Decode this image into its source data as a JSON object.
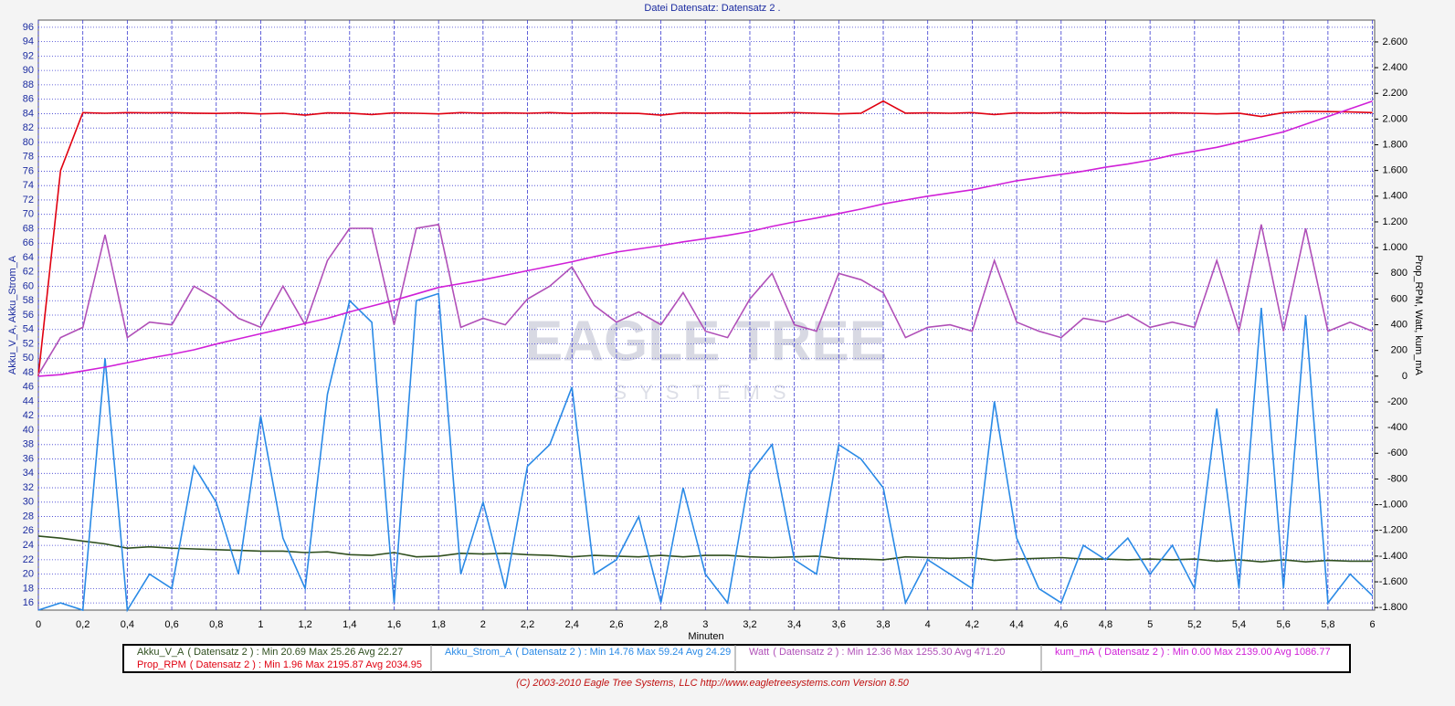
{
  "header": {
    "title": "Datei   Datensatz: Datensatz 2 ."
  },
  "footer": "(C) 2003-2010 Eagle Tree Systems, LLC      http://www.eagletreesystems.com      Version 8.50",
  "watermark": [
    "EAGLE TREE",
    "SYSTEMS"
  ],
  "chart_data": {
    "type": "line",
    "x_label": "Minuten",
    "y_label": "Akku_V_A, Akku_Strom_A",
    "y2_label": "Prop_RPM, Watt, kum_mA",
    "xlim": [
      0,
      6.01
    ],
    "ylim": [
      15,
      97
    ],
    "y2lim": [
      -1820,
      2770
    ],
    "grid": true,
    "xticks": [
      0,
      {
        "value": 0.2,
        "label": "0,2"
      },
      {
        "value": 0.4,
        "label": "0,4"
      },
      {
        "value": 0.6,
        "label": "0,6"
      },
      {
        "value": 0.8,
        "label": "0,8"
      },
      1,
      {
        "value": 1.2,
        "label": "1,2"
      },
      {
        "value": 1.4,
        "label": "1,4"
      },
      {
        "value": 1.6,
        "label": "1,6"
      },
      {
        "value": 1.8,
        "label": "1,8"
      },
      2,
      {
        "value": 2.2,
        "label": "2,2"
      },
      {
        "value": 2.4,
        "label": "2,4"
      },
      {
        "value": 2.6,
        "label": "2,6"
      },
      {
        "value": 2.8,
        "label": "2,8"
      },
      3,
      {
        "value": 3.2,
        "label": "3,2"
      },
      {
        "value": 3.4,
        "label": "3,4"
      },
      {
        "value": 3.6,
        "label": "3,6"
      },
      {
        "value": 3.8,
        "label": "3,8"
      },
      4,
      {
        "value": 4.2,
        "label": "4,2"
      },
      {
        "value": 4.4,
        "label": "4,4"
      },
      {
        "value": 4.6,
        "label": "4,6"
      },
      {
        "value": 4.8,
        "label": "4,8"
      },
      5,
      {
        "value": 5.2,
        "label": "5,2"
      },
      {
        "value": 5.4,
        "label": "5,4"
      },
      {
        "value": 5.6,
        "label": "5,6"
      },
      {
        "value": 5.8,
        "label": "5,8"
      },
      6
    ],
    "yticks": [
      16,
      18,
      20,
      22,
      24,
      26,
      28,
      30,
      32,
      34,
      36,
      38,
      40,
      42,
      44,
      46,
      48,
      50,
      52,
      54,
      56,
      58,
      60,
      62,
      64,
      66,
      68,
      70,
      72,
      74,
      76,
      78,
      80,
      82,
      84,
      86,
      88,
      90,
      92,
      94,
      96
    ],
    "y2ticks": [
      {
        "value": -1800,
        "label": "-1.800"
      },
      {
        "value": -1600,
        "label": "-1.600"
      },
      {
        "value": -1400,
        "label": "-1.400"
      },
      {
        "value": -1200,
        "label": "-1.200"
      },
      {
        "value": -1000,
        "label": "-1.000"
      },
      -800,
      -600,
      -400,
      -200,
      0,
      200,
      400,
      600,
      800,
      {
        "value": 1000,
        "label": "1.000"
      },
      {
        "value": 1200,
        "label": "1.200"
      },
      {
        "value": 1400,
        "label": "1.400"
      },
      {
        "value": 1600,
        "label": "1.600"
      },
      {
        "value": 1800,
        "label": "1.800"
      },
      {
        "value": 2000,
        "label": "2.000"
      },
      {
        "value": 2200,
        "label": "2.200"
      },
      {
        "value": 2400,
        "label": "2.400"
      },
      {
        "value": 2600,
        "label": "2.600"
      }
    ],
    "x": [
      0,
      0.1,
      0.2,
      0.3,
      0.4,
      0.5,
      0.6,
      0.7,
      0.8,
      0.9,
      1,
      1.1,
      1.2,
      1.3,
      1.4,
      1.5,
      1.6,
      1.7,
      1.8,
      1.9,
      2,
      2.1,
      2.2,
      2.3,
      2.4,
      2.5,
      2.6,
      2.7,
      2.8,
      2.9,
      3,
      3.1,
      3.2,
      3.3,
      3.4,
      3.5,
      3.6,
      3.7,
      3.8,
      3.9,
      4,
      4.1,
      4.2,
      4.3,
      4.4,
      4.5,
      4.6,
      4.7,
      4.8,
      4.9,
      5,
      5.1,
      5.2,
      5.3,
      5.4,
      5.5,
      5.6,
      5.7,
      5.8,
      5.9,
      6
    ],
    "series": [
      {
        "name": "Akku_V_A",
        "legend_detail": "( Datensatz 2 ) : Min 20.69    Max 25.26    Avg 22.27",
        "color": "#2f4f1f",
        "axis": "y",
        "values": [
          25.3,
          25.0,
          24.6,
          24.2,
          23.6,
          23.8,
          23.6,
          23.5,
          23.4,
          23.3,
          23.2,
          23.2,
          23.0,
          23.1,
          22.7,
          22.6,
          23.0,
          22.4,
          22.5,
          22.9,
          22.8,
          22.9,
          22.7,
          22.6,
          22.4,
          22.6,
          22.5,
          22.4,
          22.6,
          22.4,
          22.6,
          22.6,
          22.4,
          22.3,
          22.4,
          22.5,
          22.2,
          22.1,
          22.0,
          22.4,
          22.3,
          22.2,
          22.3,
          21.9,
          22.1,
          22.2,
          22.3,
          22.1,
          22.1,
          22.0,
          22.1,
          22.0,
          22.1,
          21.8,
          22.0,
          21.7,
          22.0,
          21.7,
          21.9,
          21.8,
          21.8
        ]
      },
      {
        "name": "Akku_Strom_A",
        "legend_detail": "( Datensatz 2 ) : Min 14.76    Max 59.24    Avg 24.29",
        "color": "#2a8ae6",
        "axis": "y",
        "values": [
          15,
          16,
          15,
          50,
          15,
          20,
          18,
          35,
          30,
          20,
          42,
          25,
          18,
          45,
          58,
          55,
          16,
          58,
          59,
          20,
          30,
          18,
          35,
          38,
          46,
          20,
          22,
          28,
          16,
          32,
          20,
          16,
          34,
          38,
          22,
          20,
          38,
          36,
          32,
          16,
          22,
          20,
          18,
          44,
          25,
          18,
          16,
          24,
          22,
          25,
          20,
          24,
          18,
          43,
          18,
          57,
          18,
          56,
          16,
          20,
          17
        ]
      },
      {
        "name": "Prop_RPM",
        "legend_detail": "( Datensatz 2 ) : Min 1.96    Max 2195.87    Avg 2034.95",
        "color": "#e00010",
        "axis": "y2",
        "values": [
          2,
          1600,
          2050,
          2045,
          2050,
          2048,
          2050,
          2046,
          2044,
          2048,
          2040,
          2045,
          2030,
          2048,
          2046,
          2035,
          2048,
          2045,
          2040,
          2050,
          2046,
          2048,
          2045,
          2050,
          2044,
          2048,
          2046,
          2044,
          2030,
          2048,
          2046,
          2048,
          2044,
          2046,
          2050,
          2045,
          2040,
          2046,
          2140,
          2046,
          2048,
          2045,
          2050,
          2035,
          2048,
          2046,
          2050,
          2046,
          2048,
          2044,
          2046,
          2048,
          2045,
          2040,
          2046,
          2020,
          2050,
          2060,
          2058,
          2055,
          2050
        ]
      },
      {
        "name": "Watt",
        "legend_detail": "( Datensatz 2 ) : Min 12.36    Max 1255.30    Avg 471.20",
        "color": "#b050b8",
        "axis": "y2",
        "values": [
          12,
          300,
          380,
          1100,
          300,
          420,
          400,
          700,
          600,
          450,
          380,
          700,
          400,
          900,
          1150,
          1150,
          400,
          1150,
          1180,
          380,
          450,
          400,
          600,
          700,
          850,
          550,
          420,
          500,
          400,
          650,
          350,
          300,
          600,
          800,
          400,
          350,
          800,
          750,
          650,
          300,
          380,
          400,
          350,
          900,
          420,
          350,
          300,
          450,
          420,
          480,
          380,
          420,
          380,
          900,
          350,
          1180,
          350,
          1150,
          350,
          420,
          350
        ]
      },
      {
        "name": "kum_mA",
        "legend_detail": "( Datensatz 2 ) : Min 0.00    Max 2139.00    Avg 1086.77",
        "color": "#d020d8",
        "axis": "y2",
        "values": [
          0,
          12,
          40,
          70,
          105,
          140,
          170,
          205,
          250,
          290,
          330,
          370,
          410,
          450,
          500,
          545,
          590,
          640,
          690,
          720,
          750,
          785,
          820,
          855,
          890,
          930,
          965,
          990,
          1015,
          1045,
          1070,
          1095,
          1125,
          1165,
          1200,
          1230,
          1265,
          1300,
          1340,
          1370,
          1400,
          1425,
          1450,
          1485,
          1520,
          1545,
          1570,
          1595,
          1625,
          1650,
          1680,
          1720,
          1750,
          1780,
          1820,
          1860,
          1900,
          1960,
          2020,
          2080,
          2139
        ]
      }
    ]
  }
}
